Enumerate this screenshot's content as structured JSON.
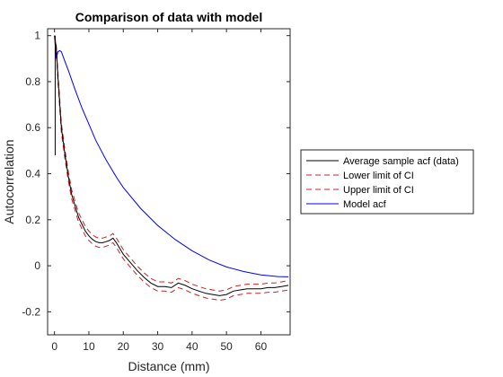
{
  "chart_data": {
    "type": "line",
    "title": "Comparison of data with model",
    "xlabel": "Distance (mm)",
    "ylabel": "Autocorrelation",
    "xlim": [
      -2,
      68.5
    ],
    "ylim": [
      -0.3,
      1.03
    ],
    "xticks": [
      0,
      10,
      20,
      30,
      40,
      50,
      60
    ],
    "yticks": [
      -0.2,
      0,
      0.2,
      0.4,
      0.6,
      0.8,
      1
    ],
    "ytick_labels": [
      "-0.2",
      "0",
      "0.2",
      "0.4",
      "0.6",
      "0.8",
      "1"
    ],
    "grid": false,
    "legend_position": "outside-right",
    "series": [
      {
        "name": "Average sample acf (data)",
        "color": "#000000",
        "style": "solid",
        "x": [
          0,
          0.5,
          1,
          2,
          3,
          4,
          5,
          6,
          7,
          8,
          9,
          10,
          11,
          12,
          13,
          14,
          15,
          16,
          17,
          18,
          19,
          20,
          22,
          24,
          26,
          28,
          30,
          32,
          34,
          36,
          38,
          40,
          42,
          44,
          46,
          48,
          50,
          52,
          54,
          56,
          58,
          60,
          62,
          64,
          66,
          68
        ],
        "y": [
          1.0,
          0.95,
          0.82,
          0.6,
          0.49,
          0.39,
          0.31,
          0.26,
          0.21,
          0.18,
          0.15,
          0.13,
          0.115,
          0.105,
          0.1,
          0.1,
          0.105,
          0.11,
          0.12,
          0.1,
          0.075,
          0.05,
          0.015,
          -0.02,
          -0.05,
          -0.075,
          -0.09,
          -0.09,
          -0.095,
          -0.075,
          -0.085,
          -0.1,
          -0.11,
          -0.12,
          -0.125,
          -0.13,
          -0.125,
          -0.11,
          -0.105,
          -0.1,
          -0.1,
          -0.1,
          -0.095,
          -0.095,
          -0.09,
          -0.085
        ]
      },
      {
        "name": "Lower limit of CI",
        "color": "#cc2222",
        "style": "dashed",
        "x": [
          0,
          0.5,
          1,
          2,
          3,
          4,
          5,
          6,
          7,
          8,
          9,
          10,
          11,
          12,
          13,
          14,
          15,
          16,
          17,
          18,
          19,
          20,
          22,
          24,
          26,
          28,
          30,
          32,
          34,
          36,
          38,
          40,
          42,
          44,
          46,
          48,
          50,
          52,
          54,
          56,
          58,
          60,
          62,
          64,
          66,
          68
        ],
        "y": [
          0.99,
          0.93,
          0.8,
          0.58,
          0.47,
          0.37,
          0.29,
          0.24,
          0.19,
          0.16,
          0.13,
          0.11,
          0.095,
          0.085,
          0.08,
          0.08,
          0.085,
          0.09,
          0.1,
          0.08,
          0.055,
          0.03,
          -0.005,
          -0.04,
          -0.07,
          -0.095,
          -0.11,
          -0.11,
          -0.115,
          -0.095,
          -0.105,
          -0.12,
          -0.13,
          -0.14,
          -0.145,
          -0.15,
          -0.145,
          -0.13,
          -0.125,
          -0.12,
          -0.12,
          -0.12,
          -0.115,
          -0.115,
          -0.11,
          -0.105
        ]
      },
      {
        "name": "Upper limit of CI",
        "color": "#cc2222",
        "style": "dashed",
        "x": [
          0,
          0.5,
          1,
          2,
          3,
          4,
          5,
          6,
          7,
          8,
          9,
          10,
          11,
          12,
          13,
          14,
          15,
          16,
          17,
          18,
          19,
          20,
          22,
          24,
          26,
          28,
          30,
          32,
          34,
          36,
          38,
          40,
          42,
          44,
          46,
          48,
          50,
          52,
          54,
          56,
          58,
          60,
          62,
          64,
          66,
          68
        ],
        "y": [
          1.0,
          0.96,
          0.84,
          0.62,
          0.51,
          0.41,
          0.33,
          0.28,
          0.23,
          0.2,
          0.17,
          0.15,
          0.135,
          0.125,
          0.12,
          0.12,
          0.125,
          0.13,
          0.14,
          0.12,
          0.095,
          0.07,
          0.035,
          0.0,
          -0.03,
          -0.055,
          -0.07,
          -0.07,
          -0.075,
          -0.055,
          -0.065,
          -0.08,
          -0.09,
          -0.1,
          -0.105,
          -0.11,
          -0.105,
          -0.09,
          -0.085,
          -0.08,
          -0.08,
          -0.08,
          -0.075,
          -0.075,
          -0.07,
          -0.065
        ]
      },
      {
        "name": "Model acf",
        "color": "#0000ff",
        "style": "solid",
        "x": [
          0,
          0.5,
          1,
          1.5,
          2,
          3,
          4,
          6,
          8,
          10,
          12,
          15,
          18,
          20,
          25,
          30,
          35,
          40,
          45,
          50,
          55,
          60,
          65,
          68
        ],
        "y": [
          1.0,
          0.9,
          0.93,
          0.935,
          0.93,
          0.89,
          0.85,
          0.765,
          0.685,
          0.615,
          0.545,
          0.46,
          0.385,
          0.34,
          0.25,
          0.175,
          0.115,
          0.065,
          0.025,
          -0.005,
          -0.025,
          -0.04,
          -0.047,
          -0.048
        ]
      }
    ],
    "data_artifacts": [
      {
        "series": "Average sample acf (data)",
        "x": [
          0.2,
          0.2
        ],
        "y": [
          0.48,
          1.0
        ]
      }
    ]
  }
}
